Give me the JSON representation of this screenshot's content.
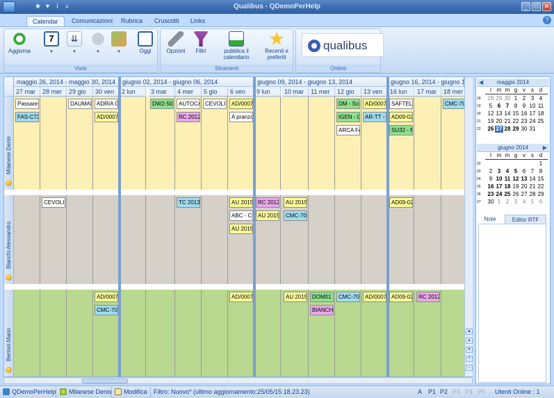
{
  "window": {
    "title": "Qualibus  -  QDemoPerHelp",
    "min": "_",
    "max": "□",
    "close": "✕"
  },
  "qat": [
    "★",
    "▾",
    "i",
    "⌕"
  ],
  "tabs": [
    "Calendar",
    "Comunicazioni",
    "Rubrica",
    "Cruscotti",
    "Links"
  ],
  "ribbon": {
    "groups": {
      "viste": "Viste",
      "strumenti": "Strumenti",
      "online": "Online"
    },
    "aggiorna": "Aggiorna",
    "oggi": "Oggi",
    "opzioni": "Opzioni",
    "filtri": "Filtri",
    "pubblica": "pubblica il calendario",
    "recenti": "Recenti e preferiti",
    "brand": "qualibus",
    "day_number": "7"
  },
  "weeks": [
    "maggio 26, 2014 - maggio 30, 2014",
    "giugno 02, 2014 - giugno 06, 2014",
    "giugno 09, 2014 - giugno 13, 2014",
    "giugno 16, 2014 - giugno 18, 2"
  ],
  "days": [
    "27 mar",
    "28 mer",
    "29 gio",
    "30 ven",
    "2 lun",
    "3 mar",
    "4 mer",
    "5 gio",
    "6 ven",
    "9 lun",
    "10 mar",
    "11 mer",
    "12 gio",
    "13 ven",
    "16 lun",
    "17 mar",
    "18 mer"
  ],
  "resources": [
    "Milanese Denis",
    "Bianchi Alessandro",
    "Bertoni Mario"
  ],
  "appointments": [
    {
      "r": 0,
      "d": 0,
      "s": 0,
      "text": "Passare ...",
      "c": "#ffffff"
    },
    {
      "r": 0,
      "d": 2,
      "s": 0,
      "text": "DAUMAR",
      "c": "#ffffff"
    },
    {
      "r": 0,
      "d": 3,
      "s": 0,
      "text": "ADRIA G",
      "c": "#ffffff"
    },
    {
      "r": 0,
      "d": 5,
      "s": 0,
      "text": "DW2-502",
      "c": "#8fe08f"
    },
    {
      "r": 0,
      "d": 6,
      "s": 0,
      "text": "AUTOCA",
      "c": "#ffffff"
    },
    {
      "r": 0,
      "d": 7,
      "s": 0,
      "text": "CEVOLIN",
      "c": "#ffffff"
    },
    {
      "r": 0,
      "d": 8,
      "s": 0,
      "text": "AD/0007",
      "c": "#ffff99"
    },
    {
      "r": 0,
      "d": 12,
      "s": 0,
      "text": "DM - Soft",
      "c": "#8fe08f"
    },
    {
      "r": 0,
      "d": 13,
      "s": 0,
      "text": "AD/0007",
      "c": "#ffff99"
    },
    {
      "r": 0,
      "d": 14,
      "s": 0,
      "text": "SAFTEL S",
      "c": "#ffffff"
    },
    {
      "r": 0,
      "d": 16,
      "s": 0,
      "text": "CMC-701",
      "c": "#a0dcf0"
    },
    {
      "r": 0,
      "d": 0,
      "s": 1,
      "text": "FAS-C72",
      "c": "#a0dcf0"
    },
    {
      "r": 0,
      "d": 3,
      "s": 1,
      "text": "AD/0007",
      "c": "#ffff99"
    },
    {
      "r": 0,
      "d": 6,
      "s": 1,
      "text": "RC 2012,",
      "c": "#e9a8e9"
    },
    {
      "r": 0,
      "d": 8,
      "s": 1,
      "text": "A pranzo",
      "c": "#ffffff"
    },
    {
      "r": 0,
      "d": 12,
      "s": 1,
      "text": "IGEN - Ca",
      "c": "#8fe08f"
    },
    {
      "r": 0,
      "d": 13,
      "s": 1,
      "text": "AR-TT - I",
      "c": "#a0dcf0"
    },
    {
      "r": 0,
      "d": 14,
      "s": 1,
      "text": "AD09-02",
      "c": "#ffff99"
    },
    {
      "r": 0,
      "d": 12,
      "s": 2,
      "text": "ARCA Fo",
      "c": "#ffffff"
    },
    {
      "r": 0,
      "d": 14,
      "s": 2,
      "text": "SU32 - M",
      "c": "#8fe08f"
    },
    {
      "r": 1,
      "d": 1,
      "s": 0,
      "text": "CEVOLIN",
      "c": "#ffffff"
    },
    {
      "r": 1,
      "d": 6,
      "s": 0,
      "text": "TC 2013/",
      "c": "#a0dcf0"
    },
    {
      "r": 1,
      "d": 8,
      "s": 0,
      "text": "AU 2015,",
      "c": "#ffff99"
    },
    {
      "r": 1,
      "d": 9,
      "s": 0,
      "text": "RC 2012,",
      "c": "#e9a8e9"
    },
    {
      "r": 1,
      "d": 10,
      "s": 0,
      "text": "AU 2015,",
      "c": "#ffff99"
    },
    {
      "r": 1,
      "d": 14,
      "s": 0,
      "text": "AD09-02",
      "c": "#ffff99"
    },
    {
      "r": 1,
      "d": 8,
      "s": 1,
      "text": "ABC - Ch",
      "c": "#ffffff"
    },
    {
      "r": 1,
      "d": 9,
      "s": 1,
      "text": "AU 2015,",
      "c": "#ffff99"
    },
    {
      "r": 1,
      "d": 10,
      "s": 1,
      "text": "CMC-701",
      "c": "#a0dcf0"
    },
    {
      "r": 1,
      "d": 8,
      "s": 2,
      "text": "AU 2015,",
      "c": "#ffff99"
    },
    {
      "r": 2,
      "d": 3,
      "s": 0,
      "text": "AD/0007",
      "c": "#ffff99"
    },
    {
      "r": 2,
      "d": 8,
      "s": 0,
      "text": "AD/0007",
      "c": "#ffff99"
    },
    {
      "r": 2,
      "d": 10,
      "s": 0,
      "text": "AU 2015,",
      "c": "#ffff99"
    },
    {
      "r": 2,
      "d": 11,
      "s": 0,
      "text": "DOM01 -",
      "c": "#8fe08f"
    },
    {
      "r": 2,
      "d": 12,
      "s": 0,
      "text": "CMC-701",
      "c": "#a0dcf0"
    },
    {
      "r": 2,
      "d": 13,
      "s": 0,
      "text": "AD/0007",
      "c": "#ffff99"
    },
    {
      "r": 2,
      "d": 14,
      "s": 0,
      "text": "AD09-02",
      "c": "#ffff99"
    },
    {
      "r": 2,
      "d": 15,
      "s": 0,
      "text": "RC 2012,",
      "c": "#e9a8e9"
    },
    {
      "r": 2,
      "d": 3,
      "s": 1,
      "text": "CMC-701",
      "c": "#a0dcf0"
    },
    {
      "r": 2,
      "d": 11,
      "s": 1,
      "text": "BIANCHI",
      "c": "#e9a8e9"
    }
  ],
  "minical": {
    "weekdays": [
      "l",
      "m",
      "m",
      "g",
      "v",
      "s",
      "d"
    ],
    "may": {
      "title": "maggio 2014",
      "weeks": [
        "18",
        "19",
        "20",
        "21",
        "22"
      ],
      "rows": [
        [
          "28",
          "29",
          "30",
          "1",
          "2",
          "3",
          "4"
        ],
        [
          "5",
          "6",
          "7",
          "8",
          "9",
          "10",
          "11"
        ],
        [
          "12",
          "13",
          "14",
          "15",
          "16",
          "17",
          "18"
        ],
        [
          "19",
          "20",
          "21",
          "22",
          "23",
          "24",
          "25"
        ],
        [
          "26",
          "27",
          "28",
          "29",
          "30",
          "31",
          ""
        ]
      ]
    },
    "june": {
      "title": "giugno 2014",
      "weeks": [
        "22",
        "23",
        "24",
        "25",
        "26",
        "27"
      ],
      "rows": [
        [
          "",
          "",
          "",
          "",
          "",
          "",
          "1"
        ],
        [
          "2",
          "3",
          "4",
          "5",
          "6",
          "7",
          "8"
        ],
        [
          "9",
          "10",
          "11",
          "12",
          "13",
          "14",
          "15"
        ],
        [
          "16",
          "17",
          "18",
          "19",
          "20",
          "21",
          "22"
        ],
        [
          "23",
          "24",
          "25",
          "26",
          "27",
          "28",
          "29"
        ],
        [
          "30",
          "1",
          "2",
          "3",
          "4",
          "5",
          "6"
        ]
      ]
    },
    "prev": "◀",
    "next": "▶"
  },
  "notes": {
    "tab1": "Note",
    "tab2": "Editor RTF"
  },
  "status": {
    "app": "QDemoPerHelp",
    "user": "Milanese Denis",
    "modifica": "Modifica",
    "filter": "Filtro: Nuovo* (ultimo aggiornamento:25/05/15 18.23.23)",
    "a": "A",
    "p1": "P1",
    "p2": "P2",
    "p3": "P3",
    "p4": "P4",
    "p5": "P5",
    "online": "Utenti Online : 1"
  }
}
